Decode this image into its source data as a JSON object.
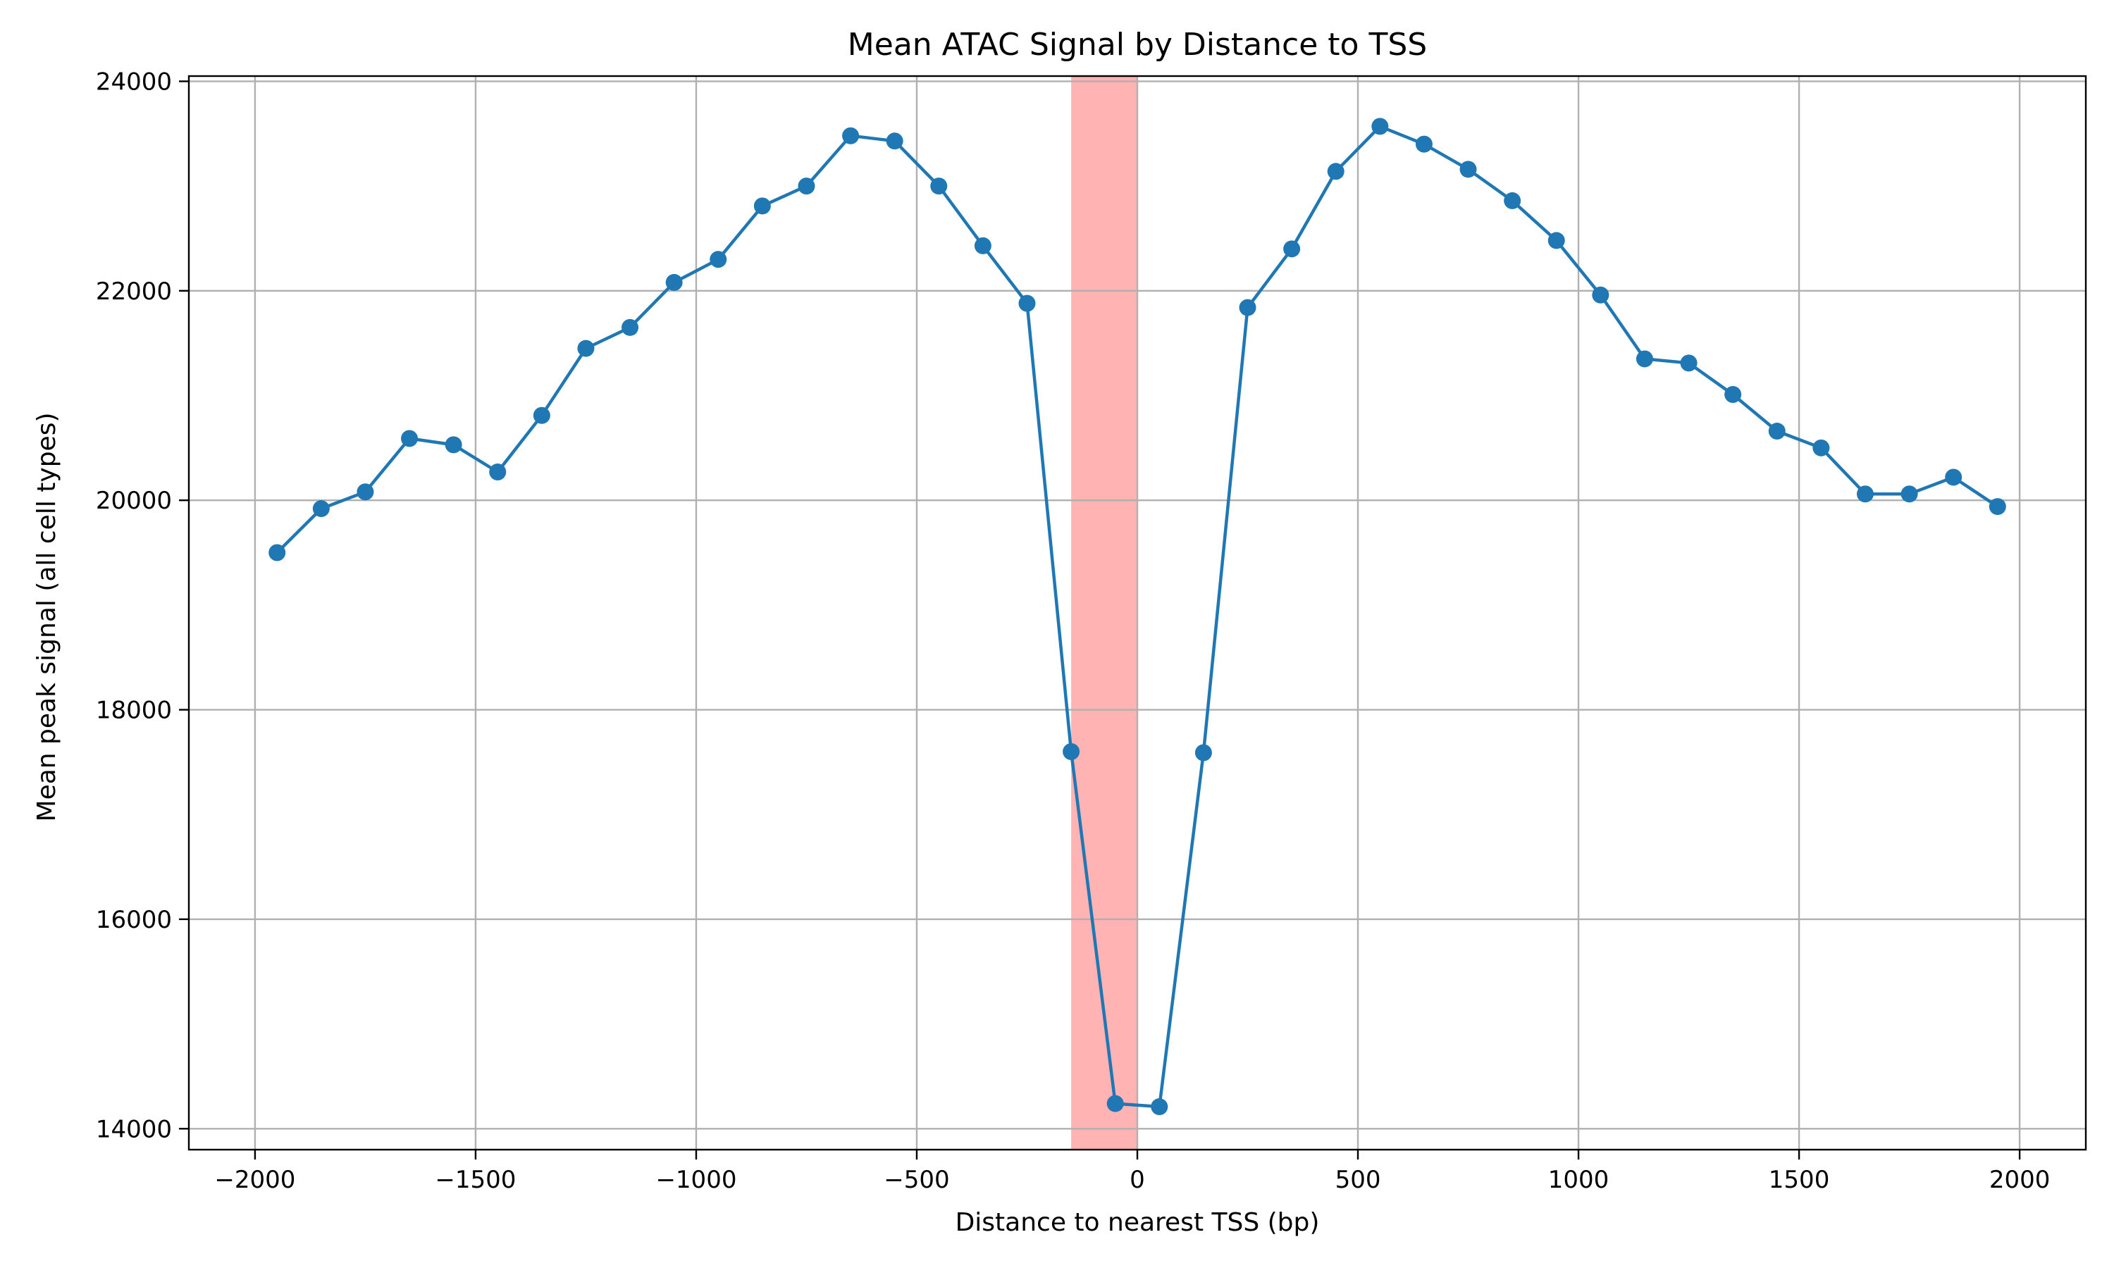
{
  "chart_data": {
    "type": "line",
    "title": "Mean ATAC Signal by Distance to TSS",
    "xlabel": "Distance to nearest TSS (bp)",
    "ylabel": "Mean peak signal (all cell types)",
    "xlim": [
      -2150,
      2150
    ],
    "ylim": [
      13800,
      24050
    ],
    "xticks": [
      -2000,
      -1500,
      -1000,
      -500,
      0,
      500,
      1000,
      1500,
      2000
    ],
    "xtick_labels": [
      "−2000",
      "−1500",
      "−1000",
      "−500",
      "0",
      "500",
      "1000",
      "1500",
      "2000"
    ],
    "yticks": [
      14000,
      16000,
      18000,
      20000,
      22000,
      24000
    ],
    "ytick_labels": [
      "14000",
      "16000",
      "18000",
      "20000",
      "22000",
      "24000"
    ],
    "grid": true,
    "highlight_band": {
      "x_range": [
        -150,
        0
      ],
      "color": "#ffb3b3"
    },
    "series": [
      {
        "color": "#1f77b4",
        "marker": "circle",
        "x": [
          -1950,
          -1850,
          -1750,
          -1650,
          -1550,
          -1450,
          -1350,
          -1250,
          -1150,
          -1050,
          -950,
          -850,
          -750,
          -650,
          -550,
          -450,
          -350,
          -250,
          -150,
          -50,
          50,
          150,
          250,
          350,
          450,
          550,
          650,
          750,
          850,
          950,
          1050,
          1150,
          1250,
          1350,
          1450,
          1550,
          1650,
          1750,
          1850,
          1950
        ],
        "y": [
          19500,
          19920,
          20080,
          20590,
          20530,
          20270,
          20810,
          21450,
          21650,
          22080,
          22300,
          22810,
          23000,
          23480,
          23430,
          23000,
          22430,
          21880,
          17600,
          14240,
          14210,
          17590,
          21840,
          22400,
          23140,
          23570,
          23400,
          23160,
          22860,
          22480,
          21960,
          21350,
          21310,
          21010,
          20660,
          20500,
          20060,
          20060,
          20220,
          19940
        ]
      }
    ]
  }
}
